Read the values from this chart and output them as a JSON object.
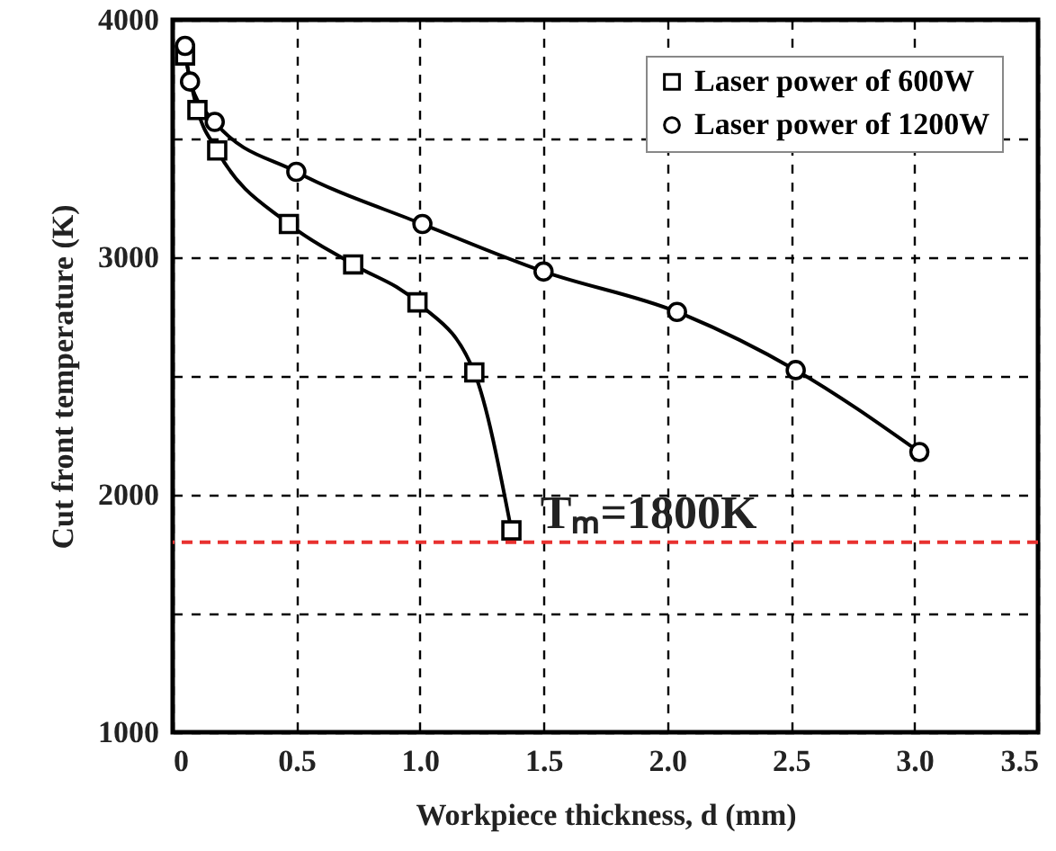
{
  "chart_data": {
    "type": "line",
    "xlabel": "Workpiece thickness, d (mm)",
    "ylabel": "Cut front temperature (K)",
    "xlim": [
      0,
      3.5
    ],
    "xticks": [
      {
        "value": 0,
        "label": "0"
      },
      {
        "value": 0.5,
        "label": "0.5"
      },
      {
        "value": 1,
        "label": "1.0"
      },
      {
        "value": 1.5,
        "label": "1.5"
      },
      {
        "value": 2,
        "label": "2.0"
      },
      {
        "value": 2.5,
        "label": "2.5"
      },
      {
        "value": 3,
        "label": "3.0"
      },
      {
        "value": 3.5,
        "label": "3.5"
      }
    ],
    "ylim": [
      1000,
      4000
    ],
    "yticks": [
      1000,
      {
        "value": 1500,
        "label": null
      },
      2000,
      {
        "value": 2500,
        "label": null
      },
      3000,
      {
        "value": 3500,
        "label": null
      },
      4000
    ],
    "grid": true,
    "legend": "top right",
    "line_style": "solid",
    "series": [
      {
        "name": "Laser power of 600W",
        "color": "#000000",
        "marker": "square",
        "x": [
          0.05,
          0.1,
          0.18,
          0.47,
          0.73,
          0.99,
          1.22,
          1.37
        ],
        "values": [
          3850,
          3620,
          3450,
          3140,
          2970,
          2810,
          2515,
          1850
        ]
      },
      {
        "name": "Laser power of 1200W",
        "color": "#000000",
        "marker": "circle",
        "x": [
          0.05,
          0.07,
          0.17,
          0.5,
          1.01,
          1.5,
          2.04,
          2.52,
          3.02
        ],
        "values": [
          3890,
          3740,
          3570,
          3360,
          3140,
          2940,
          2770,
          2525,
          2180
        ]
      }
    ],
    "ref_lines": [
      {
        "axis": "y",
        "value": 1800,
        "label": "Tₘ=1800K",
        "color": "#e8312f",
        "line_style": "dashed"
      }
    ]
  }
}
